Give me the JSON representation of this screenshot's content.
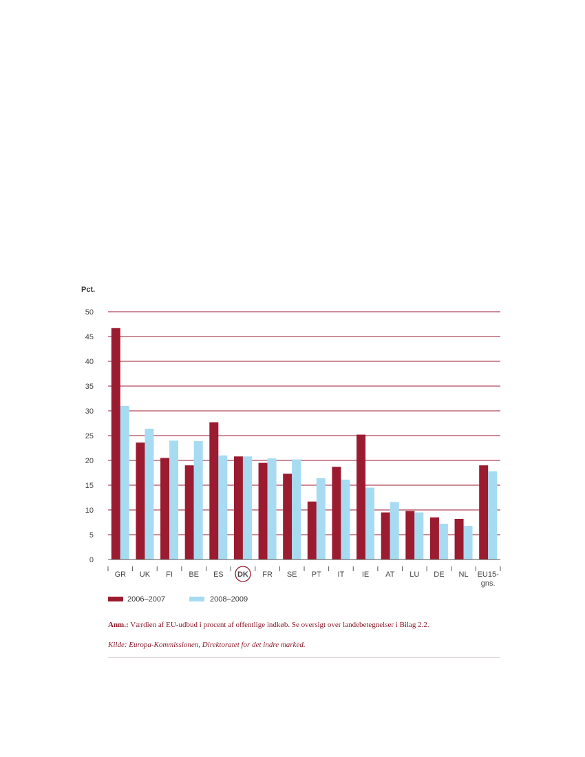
{
  "colors": {
    "series1": "#9b1b30",
    "series2": "#a7dbf1",
    "grid": "#9b1b30",
    "axis": "#555555",
    "note": "#8b1a2a"
  },
  "chart_data": {
    "type": "bar",
    "ylabel": "Pct.",
    "ylim": [
      0,
      50
    ],
    "yticks": [
      0,
      5,
      10,
      15,
      20,
      25,
      30,
      35,
      40,
      45,
      50
    ],
    "grid": true,
    "legend_position": "bottom-left",
    "categories": [
      "GR",
      "UK",
      "FI",
      "BE",
      "ES",
      "DK",
      "FR",
      "SE",
      "PT",
      "IT",
      "IE",
      "AT",
      "LU",
      "DE",
      "NL",
      "EU15-gns."
    ],
    "highlight_category": "DK",
    "series": [
      {
        "name": "2006–2007",
        "values": [
          46.7,
          23.6,
          20.5,
          19.0,
          27.7,
          20.8,
          19.5,
          17.3,
          11.7,
          18.7,
          25.2,
          9.5,
          9.8,
          8.5,
          8.2,
          19.0
        ]
      },
      {
        "name": "2008–2009",
        "values": [
          31.0,
          26.4,
          24.0,
          23.9,
          21.0,
          20.8,
          20.4,
          20.2,
          16.4,
          16.1,
          14.5,
          11.6,
          9.5,
          7.2,
          6.8,
          17.8
        ]
      }
    ]
  },
  "notes": {
    "anm_label": "Anm.:",
    "anm_text": " Værdien af EU-udbud i procent af offentlige indkøb. Se oversigt over landebetegnelser i Bilag 2.2.",
    "source": "Kilde: Europa-Kommissionen, Direktoratet for det indre marked."
  }
}
